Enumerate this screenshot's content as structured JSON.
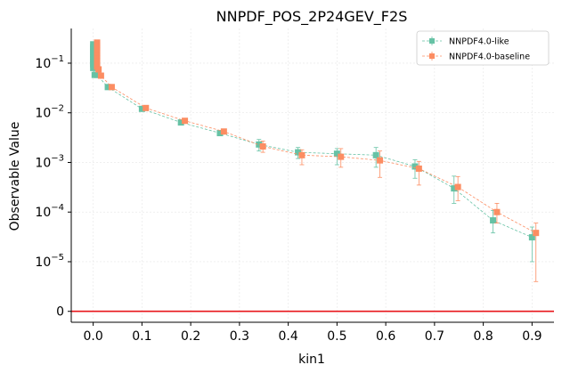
{
  "chart_data": {
    "type": "scatter",
    "title": "NNPDF_POS_2P24GEV_F2S",
    "xlabel": "kin1",
    "ylabel": "Observable Value",
    "yscale": "symlog",
    "xlim": [
      -0.045,
      0.945
    ],
    "ylim": [
      -2.2e-06,
      0.5
    ],
    "x_ticks": [
      "0.0",
      "0.1",
      "0.2",
      "0.3",
      "0.4",
      "0.5",
      "0.6",
      "0.7",
      "0.8",
      "0.9"
    ],
    "y_ticks": [
      {
        "label": "0",
        "value": 0
      },
      {
        "label": "10",
        "exp": "−5",
        "value": 1e-05
      },
      {
        "label": "10",
        "exp": "−4",
        "value": 0.0001
      },
      {
        "label": "10",
        "exp": "−3",
        "value": 0.001
      },
      {
        "label": "10",
        "exp": "−2",
        "value": 0.01
      },
      {
        "label": "10",
        "exp": "−1",
        "value": 0.1
      }
    ],
    "legend": {
      "position": "top-right"
    },
    "reference_line": {
      "y": 0,
      "color": "#e8161b"
    },
    "grid": true,
    "series": [
      {
        "name": "NNPDF4.0-like",
        "color": "#66c2a5",
        "x": [
          0.0,
          0.0,
          0.0,
          0.0,
          0.0,
          0.0,
          0.0,
          0.0,
          0.0,
          0.0,
          0.003,
          0.008,
          0.03,
          0.1,
          0.18,
          0.26,
          0.34,
          0.42,
          0.5,
          0.58,
          0.66,
          0.74,
          0.82,
          0.9
        ],
        "y": [
          0.24,
          0.21,
          0.19,
          0.17,
          0.15,
          0.135,
          0.12,
          0.105,
          0.095,
          0.08,
          0.058,
          0.058,
          0.033,
          0.012,
          0.0064,
          0.0039,
          0.0023,
          0.0016,
          0.0015,
          0.0014,
          0.00083,
          0.0003,
          6.8e-05,
          3.1e-05
        ],
        "err_low": [
          0.01,
          0.01,
          0.01,
          0.01,
          0.01,
          0.01,
          0.01,
          0.01,
          0.005,
          0.005,
          0.004,
          0.004,
          0.002,
          0.001,
          0.0005,
          0.0003,
          0.0006,
          0.0004,
          0.0006,
          0.0006,
          0.00035,
          0.00015,
          3e-05,
          2.1e-05
        ],
        "err_high": [
          0.01,
          0.01,
          0.01,
          0.01,
          0.01,
          0.01,
          0.01,
          0.01,
          0.005,
          0.005,
          0.004,
          0.004,
          0.002,
          0.001,
          0.0005,
          0.0003,
          0.0006,
          0.0004,
          0.0004,
          0.0006,
          0.0003,
          0.00023,
          4e-05,
          1.9e-05
        ]
      },
      {
        "name": "NNPDF4.0-baseline",
        "color": "#fc8d62",
        "x": [
          0.008,
          0.008,
          0.008,
          0.008,
          0.008,
          0.008,
          0.008,
          0.008,
          0.008,
          0.008,
          0.011,
          0.016,
          0.038,
          0.108,
          0.188,
          0.268,
          0.348,
          0.428,
          0.508,
          0.588,
          0.668,
          0.748,
          0.828,
          0.908
        ],
        "y": [
          0.26,
          0.23,
          0.2,
          0.18,
          0.16,
          0.14,
          0.125,
          0.11,
          0.098,
          0.085,
          0.075,
          0.056,
          0.033,
          0.0125,
          0.0069,
          0.0042,
          0.0021,
          0.0014,
          0.0013,
          0.0011,
          0.00075,
          0.00032,
          0.0001,
          3.8e-05
        ],
        "err_low": [
          0.01,
          0.01,
          0.01,
          0.01,
          0.01,
          0.01,
          0.01,
          0.01,
          0.005,
          0.005,
          0.005,
          0.004,
          0.002,
          0.001,
          0.0005,
          0.0003,
          0.0005,
          0.0005,
          0.0005,
          0.0006,
          0.0004,
          0.00015,
          4e-05,
          3.2e-05
        ],
        "err_high": [
          0.01,
          0.01,
          0.01,
          0.01,
          0.01,
          0.01,
          0.01,
          0.01,
          0.005,
          0.005,
          0.005,
          0.004,
          0.002,
          0.001,
          0.0005,
          0.0003,
          0.0006,
          0.0004,
          0.0006,
          0.0006,
          0.0003,
          0.0002,
          5e-05,
          2.2e-05
        ]
      }
    ]
  }
}
